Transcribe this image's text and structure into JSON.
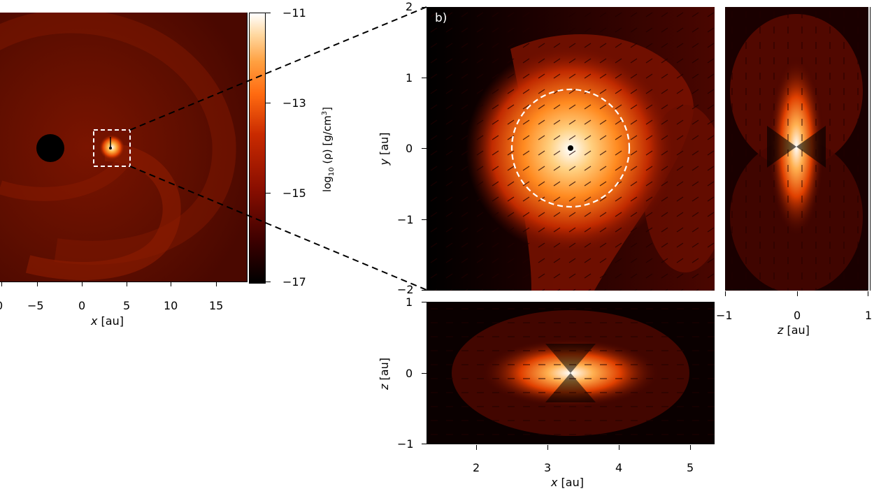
{
  "figure": {
    "panel_a": {
      "xlabel_var": "x",
      "xlabel_unit": " [au]",
      "xticks": [
        "0",
        "−5",
        "0",
        "5",
        "10",
        "15"
      ]
    },
    "colorbar": {
      "label": "log10 (ρ) [g/cm3]",
      "label_parts": {
        "prefix": "log",
        "sub": "10",
        "mid": " (ρ) [g/cm",
        "sup": "3",
        "suffix": "]"
      },
      "ticks": [
        "−11",
        "−13",
        "−15",
        "−17"
      ]
    },
    "panel_b": {
      "label": "b)",
      "ylabel_var": "y",
      "ylabel_unit": " [au]",
      "yticks": [
        "2",
        "1",
        "0",
        "−1",
        "−2"
      ]
    },
    "panel_xz": {
      "ylabel_var": "z",
      "ylabel_unit": " [au]",
      "yticks": [
        "1",
        "0",
        "−1"
      ],
      "xticks": [
        "2",
        "3",
        "4",
        "5"
      ],
      "xlabel_var": "x",
      "xlabel_unit": " [au]"
    },
    "panel_zy": {
      "xticks": [
        "−1",
        "0",
        "1"
      ],
      "xlabel_var": "z",
      "xlabel_unit": " [au]"
    },
    "colors": {
      "background_dark": "#5a0c00",
      "hot": "#ff8a1e",
      "white": "#ffffff"
    }
  }
}
